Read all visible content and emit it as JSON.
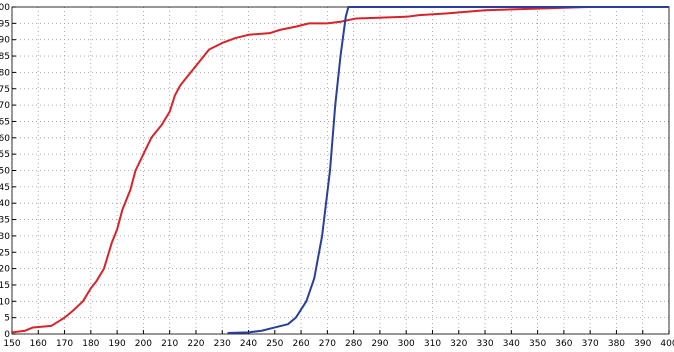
{
  "chart_data": {
    "type": "line",
    "series": [
      {
        "color": "#d8232a",
        "x": [
          150,
          155,
          158,
          165,
          168,
          170,
          173,
          177,
          180,
          182,
          185,
          188,
          190,
          192,
          195,
          197,
          200,
          203,
          207,
          210,
          212,
          214,
          217,
          220,
          225,
          230,
          235,
          240,
          248,
          252,
          258,
          263,
          270,
          275,
          278,
          281,
          300,
          305,
          315,
          330,
          350,
          369
        ],
        "values": [
          0.5,
          1,
          2,
          2.5,
          4,
          5,
          7,
          10,
          14,
          16,
          20,
          28,
          32,
          38,
          44,
          50,
          55,
          60,
          64,
          68,
          73,
          76,
          79,
          82,
          87,
          89,
          90.5,
          91.5,
          92,
          93,
          94,
          95,
          95,
          95.5,
          96,
          96.5,
          97,
          97.5,
          98,
          99,
          99.5,
          100
        ]
      },
      {
        "color": "#2a3f9a",
        "x": [
          232,
          240,
          245,
          250,
          255,
          258,
          262,
          265,
          268,
          271,
          273,
          275,
          277,
          278,
          400
        ],
        "values": [
          0.3,
          0.5,
          1,
          2,
          3,
          5,
          10,
          17,
          30,
          50,
          70,
          85,
          97,
          100,
          100
        ]
      }
    ],
    "xlim": [
      150,
      400
    ],
    "ylim": [
      0,
      100
    ],
    "xticks": [
      150,
      160,
      170,
      180,
      190,
      200,
      210,
      220,
      230,
      240,
      250,
      260,
      270,
      280,
      290,
      300,
      310,
      320,
      330,
      340,
      350,
      360,
      370,
      380,
      390,
      400
    ],
    "yticks": [
      0,
      5,
      10,
      15,
      20,
      25,
      30,
      35,
      40,
      45,
      50,
      55,
      60,
      65,
      70,
      75,
      80,
      85,
      90,
      95,
      100
    ],
    "grid": true
  }
}
